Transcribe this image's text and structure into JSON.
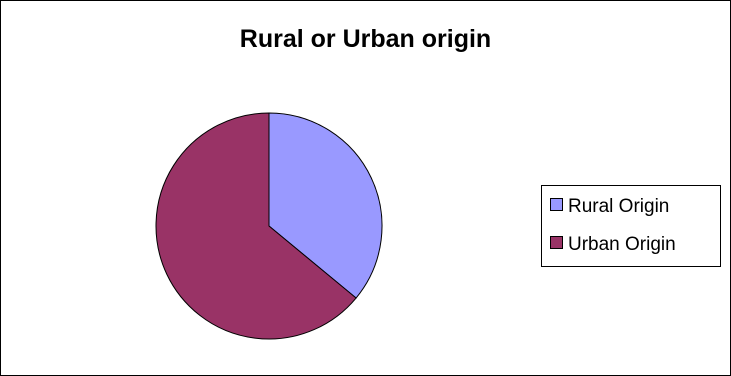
{
  "chart_data": {
    "type": "pie",
    "title": "Rural or Urban origin",
    "categories": [
      "Rural Origin",
      "Urban Origin"
    ],
    "values": [
      36,
      64
    ],
    "colors": [
      "#9999ff",
      "#993366"
    ],
    "start_angle": "12 o'clock, clockwise",
    "legend_position": "right"
  }
}
